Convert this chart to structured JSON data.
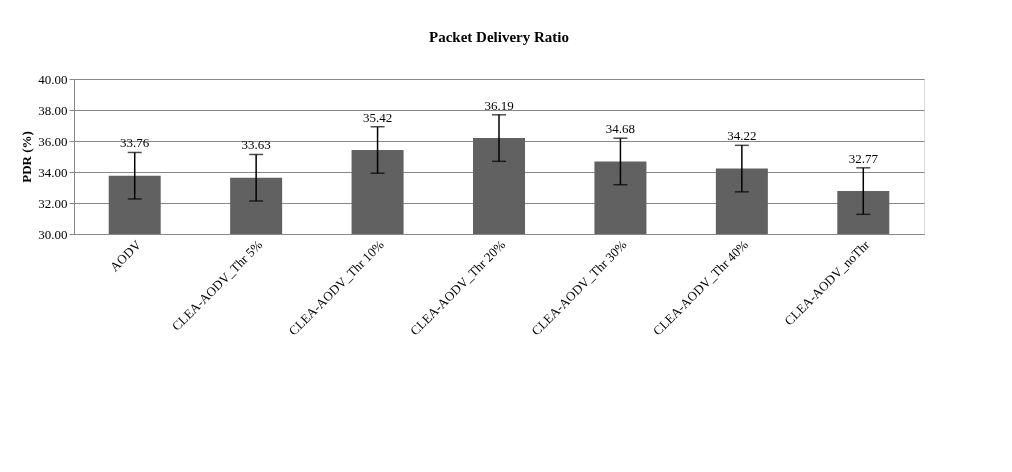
{
  "chart_data": {
    "type": "bar",
    "title": "Packet Delivery Ratio",
    "ylabel": "PDR (%)",
    "categories": [
      "AODV",
      "CLEA-AODV_Thr 5%",
      "CLEA-AODV_Thr 10%",
      "CLEA-AODV_Thr 20%",
      "CLEA-AODV_Thr 30%",
      "CLEA-AODV_Thr 40%",
      "CLEA-AODV_noThr"
    ],
    "values": [
      33.76,
      33.63,
      35.42,
      36.19,
      34.68,
      34.22,
      32.77
    ],
    "errors": [
      1.5,
      1.5,
      1.5,
      1.5,
      1.5,
      1.5,
      1.5
    ],
    "color": "#616161",
    "ylim": [
      30,
      40
    ],
    "yticks": [
      {
        "value": 30,
        "label": "30.00"
      },
      {
        "value": 32,
        "label": "32.00"
      },
      {
        "value": 34,
        "label": "34.00"
      },
      {
        "value": 36,
        "label": "36.00"
      },
      {
        "value": 38,
        "label": "38.00"
      },
      {
        "value": 40,
        "label": "40.00"
      }
    ],
    "grid": "y",
    "data_labels": true
  }
}
